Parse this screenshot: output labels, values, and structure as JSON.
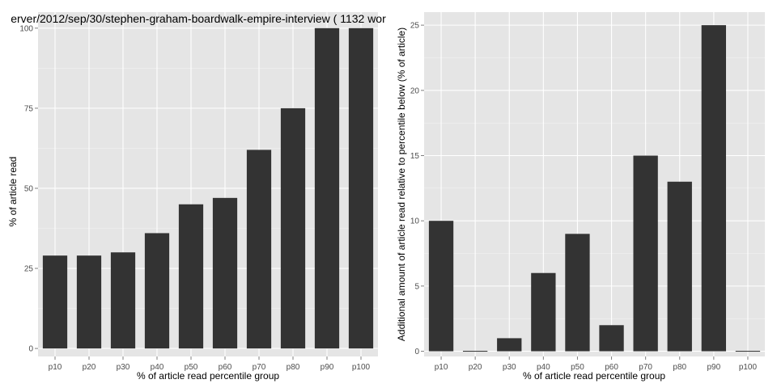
{
  "colors": {
    "panel_background": "#e5e5e5",
    "grid_major": "#ffffff",
    "grid_minor": "#f2f2f2",
    "bar_fill": "#333333",
    "tick_text": "#4d4d4d"
  },
  "chart_data": [
    {
      "type": "bar",
      "title": "erver/2012/sep/30/stephen-graham-boardwalk-empire-interview ( 1132 wor",
      "xlabel": "% of article read percentile group",
      "ylabel": "% of article read",
      "categories": [
        "p10",
        "p20",
        "p30",
        "p40",
        "p50",
        "p60",
        "p70",
        "p80",
        "p90",
        "p100"
      ],
      "values": [
        29,
        29,
        30,
        36,
        45,
        47,
        62,
        75,
        100,
        100
      ],
      "ylim": [
        -2.5,
        105
      ],
      "yticks": [
        0,
        25,
        50,
        75,
        100
      ],
      "grid": true,
      "legend": "none"
    },
    {
      "type": "bar",
      "title": "",
      "xlabel": "% of article read percentile group",
      "ylabel": "Additional amount of article read relative to percentile below (% of article)",
      "categories": [
        "p10",
        "p20",
        "p30",
        "p40",
        "p50",
        "p60",
        "p70",
        "p80",
        "p90",
        "p100"
      ],
      "values": [
        10,
        0,
        1,
        6,
        9,
        2,
        15,
        13,
        25,
        0
      ],
      "ylim": [
        -0.4,
        26
      ],
      "yticks": [
        0,
        5,
        10,
        15,
        20,
        25
      ],
      "grid": true,
      "legend": "none"
    }
  ]
}
